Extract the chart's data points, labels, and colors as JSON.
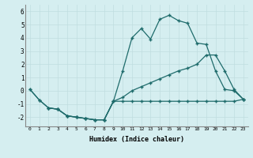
{
  "xlabel": "Humidex (Indice chaleur)",
  "background_color": "#d5eef0",
  "grid_color": "#c0dde0",
  "line_color": "#1e6b6b",
  "xlim": [
    -0.5,
    23.5
  ],
  "ylim": [
    -2.7,
    6.5
  ],
  "xticks": [
    0,
    1,
    2,
    3,
    4,
    5,
    6,
    7,
    8,
    9,
    10,
    11,
    12,
    13,
    14,
    15,
    16,
    17,
    18,
    19,
    20,
    21,
    22,
    23
  ],
  "yticks": [
    -2,
    -1,
    0,
    1,
    2,
    3,
    4,
    5,
    6
  ],
  "line1_x": [
    0,
    1,
    2,
    3,
    4,
    5,
    6,
    7,
    8,
    9,
    10,
    11,
    12,
    13,
    14,
    15,
    16,
    17,
    18,
    19,
    20,
    21,
    22,
    23
  ],
  "line1_y": [
    0.1,
    -0.7,
    -1.3,
    -1.4,
    -1.9,
    -2.0,
    -2.1,
    -2.2,
    -2.2,
    -0.8,
    -0.8,
    -0.8,
    -0.8,
    -0.8,
    -0.8,
    -0.8,
    -0.8,
    -0.8,
    -0.8,
    -0.8,
    -0.8,
    -0.8,
    -0.8,
    -0.65
  ],
  "line2_x": [
    0,
    1,
    2,
    3,
    4,
    5,
    6,
    7,
    8,
    9,
    10,
    11,
    12,
    13,
    14,
    15,
    16,
    17,
    18,
    19,
    20,
    21,
    22,
    23
  ],
  "line2_y": [
    0.1,
    -0.7,
    -1.3,
    -1.4,
    -1.9,
    -2.0,
    -2.1,
    -2.2,
    -2.2,
    -0.8,
    1.5,
    4.0,
    4.7,
    3.9,
    5.4,
    5.7,
    5.3,
    5.1,
    3.6,
    3.5,
    1.5,
    0.1,
    0.0,
    -0.65
  ],
  "line3_x": [
    2,
    3,
    4,
    5,
    6,
    7,
    8,
    9,
    10,
    11,
    12,
    13,
    14,
    15,
    16,
    17,
    18,
    19,
    20,
    21,
    22,
    23
  ],
  "line3_y": [
    -1.3,
    -1.4,
    -1.9,
    -2.0,
    -2.1,
    -2.2,
    -2.2,
    -0.8,
    -0.5,
    0.0,
    0.3,
    0.6,
    0.9,
    1.2,
    1.5,
    1.7,
    2.0,
    2.7,
    2.7,
    1.5,
    0.1,
    -0.65
  ]
}
